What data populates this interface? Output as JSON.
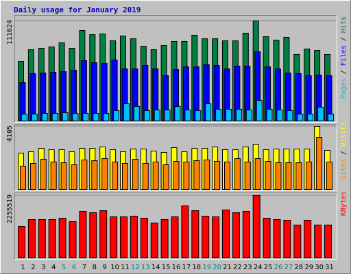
{
  "title": "Daily usage for January 2019",
  "legend_separator": " / ",
  "chart_data": [
    {
      "type": "bar",
      "series": [
        {
          "name": "Hits",
          "color": "#008040",
          "text_color": "#008040",
          "values": [
            66500,
            79500,
            81000,
            82600,
            87200,
            81000,
            100900,
            96300,
            97100,
            89400,
            94800,
            91700,
            83300,
            79500,
            84100,
            88700,
            88700,
            95600,
            91700,
            91700,
            89400,
            89400,
            97900,
            111624,
            94000,
            90200,
            93300,
            74200,
            80300,
            78700,
            74200
          ]
        },
        {
          "name": "Files",
          "color": "#0000ff",
          "text_color": "#0000ff",
          "values": [
            42800,
            52800,
            53500,
            54300,
            55000,
            56600,
            67300,
            65000,
            64200,
            68000,
            58100,
            58100,
            61900,
            58100,
            50500,
            57300,
            60400,
            60400,
            62700,
            61900,
            58100,
            61200,
            61200,
            77200,
            60400,
            58100,
            53500,
            52800,
            50500,
            51200,
            50500
          ]
        },
        {
          "name": "Pages",
          "color": "#00c0ff",
          "text_color": "#00c0ff",
          "values": [
            7600,
            7600,
            8400,
            8400,
            9200,
            8400,
            8400,
            8400,
            8400,
            11500,
            19100,
            16100,
            11500,
            12200,
            12200,
            16100,
            12200,
            11500,
            19100,
            13000,
            13000,
            13000,
            12200,
            22900,
            13000,
            12200,
            11500,
            7600,
            7600,
            15300,
            7600
          ]
        }
      ],
      "ylim": [
        0,
        111624
      ],
      "yticks": [
        111624
      ]
    },
    {
      "type": "bar",
      "series": [
        {
          "name": "Visits",
          "color": "#ffff00",
          "text_color": "#ffff00",
          "values": [
            2364,
            2453,
            2676,
            2587,
            2587,
            2453,
            2676,
            2676,
            2765,
            2587,
            2453,
            2631,
            2631,
            2498,
            2408,
            2721,
            2453,
            2676,
            2676,
            2765,
            2587,
            2587,
            2765,
            2944,
            2587,
            2631,
            2631,
            2631,
            2631,
            4105,
            2542
          ]
        },
        {
          "name": "Sites",
          "color": "#ff8000",
          "text_color": "#ff8000",
          "values": [
            1516,
            1695,
            1962,
            1784,
            1739,
            1606,
            1918,
            1873,
            2007,
            1784,
            1695,
            1962,
            1695,
            1784,
            1606,
            1829,
            1784,
            1873,
            1918,
            1829,
            1784,
            2007,
            1784,
            2007,
            1829,
            1739,
            1739,
            1739,
            1784,
            3390,
            1784
          ]
        }
      ],
      "ylim": [
        0,
        4105
      ],
      "yticks": [
        4105
      ]
    },
    {
      "type": "bar",
      "series": [
        {
          "name": "KBytes",
          "color": "#ff0000",
          "text_color": "#ff0000",
          "values": [
            1140000,
            1388000,
            1388000,
            1388000,
            1438000,
            1314000,
            1685000,
            1636000,
            1710000,
            1487000,
            1487000,
            1512000,
            1438000,
            1264000,
            1388000,
            1487000,
            1884000,
            1710000,
            1512000,
            1487000,
            1735000,
            1636000,
            1685000,
            2255519,
            1438000,
            1388000,
            1363000,
            1190000,
            1363000,
            1190000,
            1190000
          ]
        }
      ],
      "ylim": [
        0,
        2255519
      ],
      "yticks": [
        2255519
      ],
      "categories": [
        "1",
        "2",
        "3",
        "4",
        "5",
        "6",
        "7",
        "8",
        "9",
        "10",
        "11",
        "12",
        "13",
        "14",
        "15",
        "16",
        "17",
        "18",
        "19",
        "20",
        "21",
        "22",
        "23",
        "24",
        "25",
        "26",
        "27",
        "28",
        "29",
        "30",
        "31"
      ],
      "category_colors": [
        "#000000",
        "#000000",
        "#000000",
        "#000000",
        "#008080",
        "#008080",
        "#000000",
        "#000000",
        "#000000",
        "#000000",
        "#000000",
        "#008080",
        "#008080",
        "#000000",
        "#000000",
        "#000000",
        "#000000",
        "#000000",
        "#008080",
        "#008080",
        "#000000",
        "#000000",
        "#000000",
        "#000000",
        "#000000",
        "#008080",
        "#008080",
        "#000000",
        "#000000",
        "#000000",
        "#000000"
      ]
    }
  ]
}
